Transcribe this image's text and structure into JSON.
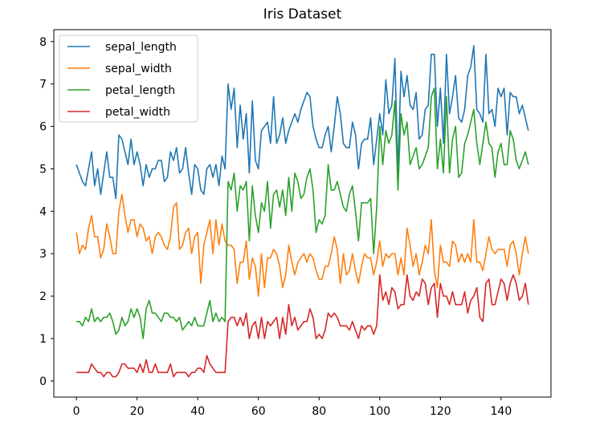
{
  "chart_data": {
    "type": "line",
    "title": "Iris Dataset",
    "xlabel": "",
    "ylabel": "",
    "xlim": [
      -7.45,
      156.45
    ],
    "ylim": [
      -0.38,
      8.28
    ],
    "xticks": [
      0,
      20,
      40,
      60,
      80,
      100,
      120,
      140
    ],
    "yticks": [
      0,
      1,
      2,
      3,
      4,
      5,
      6,
      7,
      8
    ],
    "grid": false,
    "legend_position": "top-left",
    "series": [
      {
        "name": "sepal_length",
        "color": "#1f77b4",
        "values": [
          5.1,
          4.9,
          4.7,
          4.6,
          5.0,
          5.4,
          4.6,
          5.0,
          4.4,
          4.9,
          5.4,
          4.8,
          4.8,
          4.3,
          5.8,
          5.7,
          5.4,
          5.1,
          5.7,
          5.1,
          5.4,
          5.1,
          4.6,
          5.1,
          4.8,
          5.0,
          5.0,
          5.2,
          5.2,
          4.7,
          4.8,
          5.4,
          5.2,
          5.5,
          4.9,
          5.0,
          5.5,
          4.9,
          4.4,
          5.1,
          5.0,
          4.5,
          4.4,
          5.0,
          5.1,
          4.8,
          5.1,
          4.6,
          5.3,
          5.0,
          7.0,
          6.4,
          6.9,
          5.5,
          6.5,
          5.7,
          6.3,
          4.9,
          6.6,
          5.2,
          5.0,
          5.9,
          6.0,
          6.1,
          5.6,
          6.7,
          5.6,
          5.8,
          6.2,
          5.6,
          5.9,
          6.1,
          6.3,
          6.1,
          6.4,
          6.6,
          6.8,
          6.7,
          6.0,
          5.7,
          5.5,
          5.5,
          5.8,
          6.0,
          5.4,
          6.0,
          6.7,
          6.3,
          5.6,
          5.5,
          5.5,
          6.1,
          5.8,
          5.0,
          5.6,
          5.7,
          5.7,
          6.2,
          5.1,
          5.7,
          6.3,
          5.8,
          7.1,
          6.3,
          6.5,
          7.6,
          4.9,
          7.3,
          6.7,
          7.2,
          6.5,
          6.4,
          6.8,
          5.7,
          5.8,
          6.4,
          6.5,
          7.7,
          7.7,
          6.0,
          6.9,
          5.6,
          7.7,
          6.3,
          6.7,
          7.2,
          6.2,
          6.1,
          6.4,
          7.2,
          7.4,
          7.9,
          6.4,
          6.3,
          6.1,
          7.7,
          6.3,
          6.4,
          6.0,
          6.9,
          6.7,
          6.9,
          5.8,
          6.8,
          6.7,
          6.7,
          6.3,
          6.5,
          6.2,
          5.9
        ]
      },
      {
        "name": "sepal_width",
        "color": "#ff7f0e",
        "values": [
          3.5,
          3.0,
          3.2,
          3.1,
          3.6,
          3.9,
          3.4,
          3.4,
          2.9,
          3.1,
          3.7,
          3.4,
          3.0,
          3.0,
          4.0,
          4.4,
          3.9,
          3.5,
          3.8,
          3.8,
          3.4,
          3.7,
          3.6,
          3.3,
          3.4,
          3.0,
          3.4,
          3.5,
          3.4,
          3.2,
          3.1,
          3.4,
          4.1,
          4.2,
          3.1,
          3.2,
          3.5,
          3.6,
          3.0,
          3.4,
          3.5,
          2.3,
          3.2,
          3.5,
          3.8,
          3.0,
          3.8,
          3.2,
          3.7,
          3.3,
          3.2,
          3.2,
          3.1,
          2.3,
          2.8,
          2.8,
          3.3,
          2.4,
          2.9,
          2.7,
          2.0,
          3.0,
          2.2,
          2.9,
          2.9,
          3.1,
          3.0,
          2.7,
          2.2,
          2.5,
          3.2,
          2.8,
          2.5,
          2.8,
          2.9,
          3.0,
          2.8,
          3.0,
          2.9,
          2.6,
          2.4,
          2.4,
          2.7,
          2.7,
          3.0,
          3.4,
          3.1,
          2.3,
          3.0,
          2.5,
          2.6,
          3.0,
          2.6,
          2.3,
          2.7,
          3.0,
          2.9,
          2.9,
          2.5,
          2.8,
          3.3,
          2.7,
          3.0,
          2.9,
          3.0,
          3.0,
          2.5,
          2.9,
          2.5,
          3.6,
          3.2,
          2.7,
          3.0,
          2.5,
          2.8,
          3.2,
          3.0,
          3.8,
          2.6,
          2.2,
          3.2,
          2.8,
          2.8,
          2.7,
          3.3,
          3.2,
          2.8,
          3.0,
          2.8,
          3.0,
          2.8,
          3.8,
          2.8,
          2.8,
          2.6,
          3.0,
          3.4,
          3.1,
          3.0,
          3.1,
          3.1,
          3.1,
          2.7,
          3.2,
          3.3,
          3.0,
          2.5,
          3.0,
          3.4,
          3.0
        ]
      },
      {
        "name": "petal_length",
        "color": "#2ca02c",
        "values": [
          1.4,
          1.4,
          1.3,
          1.5,
          1.4,
          1.7,
          1.4,
          1.5,
          1.4,
          1.5,
          1.5,
          1.6,
          1.4,
          1.1,
          1.2,
          1.5,
          1.3,
          1.4,
          1.7,
          1.5,
          1.7,
          1.5,
          1.0,
          1.7,
          1.9,
          1.6,
          1.6,
          1.5,
          1.4,
          1.6,
          1.6,
          1.5,
          1.5,
          1.4,
          1.5,
          1.2,
          1.3,
          1.4,
          1.3,
          1.5,
          1.3,
          1.3,
          1.3,
          1.6,
          1.9,
          1.4,
          1.6,
          1.4,
          1.5,
          1.4,
          4.7,
          4.5,
          4.9,
          4.0,
          4.6,
          4.5,
          4.7,
          3.3,
          4.6,
          3.9,
          3.5,
          4.2,
          4.0,
          4.7,
          3.6,
          4.4,
          4.5,
          4.1,
          4.5,
          3.9,
          4.8,
          4.0,
          4.9,
          4.7,
          4.3,
          4.4,
          4.8,
          5.0,
          4.5,
          3.5,
          3.8,
          3.7,
          3.9,
          5.1,
          4.5,
          4.5,
          4.7,
          4.4,
          4.1,
          4.0,
          4.4,
          4.6,
          4.0,
          3.3,
          4.2,
          4.2,
          4.2,
          4.3,
          3.0,
          4.1,
          6.0,
          5.1,
          5.9,
          5.6,
          5.8,
          6.6,
          4.5,
          6.3,
          5.8,
          6.1,
          5.1,
          5.3,
          5.5,
          5.0,
          5.1,
          5.3,
          5.5,
          6.7,
          6.9,
          5.0,
          5.7,
          4.9,
          6.7,
          4.9,
          5.7,
          6.0,
          4.8,
          4.9,
          5.6,
          5.8,
          6.1,
          6.4,
          5.6,
          5.1,
          5.6,
          6.1,
          5.6,
          5.5,
          4.8,
          5.4,
          5.6,
          5.1,
          5.1,
          5.9,
          5.7,
          5.2,
          5.0,
          5.2,
          5.4,
          5.1
        ]
      },
      {
        "name": "petal_width",
        "color": "#d62728",
        "values": [
          0.2,
          0.2,
          0.2,
          0.2,
          0.2,
          0.4,
          0.3,
          0.2,
          0.2,
          0.1,
          0.2,
          0.2,
          0.1,
          0.1,
          0.2,
          0.4,
          0.4,
          0.3,
          0.3,
          0.3,
          0.2,
          0.4,
          0.2,
          0.5,
          0.2,
          0.2,
          0.4,
          0.2,
          0.2,
          0.2,
          0.2,
          0.4,
          0.1,
          0.2,
          0.2,
          0.2,
          0.2,
          0.1,
          0.2,
          0.2,
          0.3,
          0.3,
          0.2,
          0.6,
          0.4,
          0.3,
          0.2,
          0.2,
          0.2,
          0.2,
          1.4,
          1.5,
          1.5,
          1.3,
          1.5,
          1.3,
          1.6,
          1.0,
          1.3,
          1.4,
          1.0,
          1.5,
          1.0,
          1.4,
          1.3,
          1.4,
          1.5,
          1.0,
          1.5,
          1.1,
          1.8,
          1.3,
          1.5,
          1.2,
          1.3,
          1.4,
          1.4,
          1.7,
          1.5,
          1.0,
          1.1,
          1.0,
          1.2,
          1.6,
          1.5,
          1.6,
          1.5,
          1.3,
          1.3,
          1.3,
          1.2,
          1.4,
          1.2,
          1.0,
          1.3,
          1.2,
          1.3,
          1.3,
          1.1,
          1.3,
          2.5,
          1.9,
          2.1,
          1.8,
          2.2,
          2.1,
          1.7,
          1.8,
          1.8,
          2.5,
          2.0,
          1.9,
          2.1,
          2.0,
          2.4,
          2.3,
          1.8,
          2.2,
          2.3,
          1.5,
          2.3,
          2.0,
          2.0,
          1.8,
          2.1,
          1.8,
          1.8,
          1.8,
          2.1,
          1.6,
          1.9,
          2.0,
          2.2,
          1.5,
          1.4,
          2.3,
          2.4,
          1.8,
          1.8,
          2.1,
          2.4,
          2.3,
          1.9,
          2.3,
          2.5,
          2.3,
          1.9,
          2.0,
          2.3,
          1.8
        ]
      }
    ]
  }
}
